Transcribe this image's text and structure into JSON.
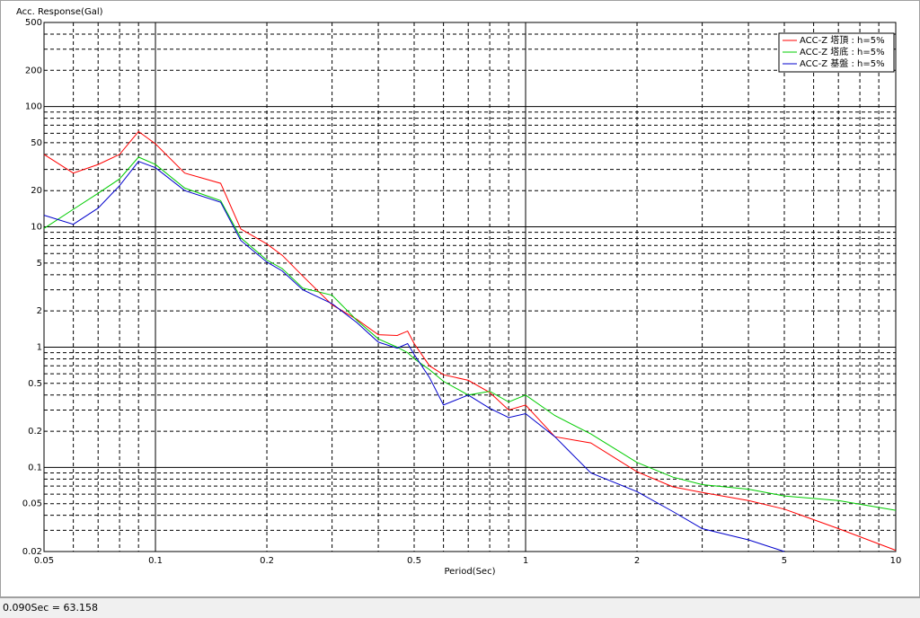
{
  "chart_data": {
    "type": "line",
    "title": "Acc. Response(Gal)",
    "xlabel": "Period(Sec)",
    "xscale": "log",
    "yscale": "log",
    "grid": true,
    "minor_grid": true,
    "legend": "upper right",
    "xlim": [
      0.05,
      10
    ],
    "ylim": [
      0.02,
      500
    ],
    "xticks": [
      0.05,
      0.1,
      0.2,
      0.5,
      1,
      2,
      5,
      10
    ],
    "yticks": [
      0.02,
      0.05,
      0.1,
      0.2,
      0.5,
      1,
      2,
      5,
      10,
      20,
      50,
      100,
      200,
      500
    ],
    "x": [
      0.05,
      0.06,
      0.07,
      0.08,
      0.09,
      0.1,
      0.12,
      0.15,
      0.17,
      0.2,
      0.22,
      0.25,
      0.3,
      0.35,
      0.4,
      0.45,
      0.48,
      0.5,
      0.55,
      0.6,
      0.7,
      0.8,
      0.9,
      1,
      1.2,
      1.5,
      2,
      2.5,
      3,
      4,
      5,
      7,
      10
    ],
    "series": [
      {
        "name": "ACC-Z 塔頂 : h=5%",
        "color": "#ff0000",
        "values": [
          40,
          28,
          33,
          40,
          62,
          49,
          28,
          23,
          9.6,
          7.2,
          5.8,
          3.9,
          2.25,
          1.7,
          1.27,
          1.25,
          1.36,
          1.07,
          0.7,
          0.59,
          0.53,
          0.42,
          0.3,
          0.33,
          0.18,
          0.16,
          0.092,
          0.069,
          0.062,
          0.053,
          0.045,
          0.031,
          0.0205
        ]
      },
      {
        "name": "ACC-Z 塔底 : h=5%",
        "color": "#00cc00",
        "values": [
          9.7,
          14,
          19,
          25,
          38,
          33,
          21,
          16.5,
          8.1,
          5.3,
          4.5,
          3.1,
          2.7,
          1.67,
          1.17,
          1.0,
          0.9,
          0.8,
          0.65,
          0.52,
          0.4,
          0.43,
          0.35,
          0.4,
          0.27,
          0.19,
          0.11,
          0.083,
          0.072,
          0.066,
          0.058,
          0.053,
          0.044
        ]
      },
      {
        "name": "ACC-Z 基盤 : h=5%",
        "color": "#0000cc",
        "values": [
          12.5,
          10.5,
          14.3,
          22,
          35,
          31,
          20,
          16,
          7.7,
          5.1,
          4.3,
          3.0,
          2.3,
          1.6,
          1.1,
          0.98,
          1.07,
          0.87,
          0.56,
          0.33,
          0.4,
          0.31,
          0.26,
          0.28,
          0.18,
          0.09,
          0.063,
          0.043,
          0.031,
          0.025,
          0.02,
          null,
          null
        ]
      }
    ]
  },
  "status_bar": {
    "text": "0.090Sec = 63.158"
  }
}
